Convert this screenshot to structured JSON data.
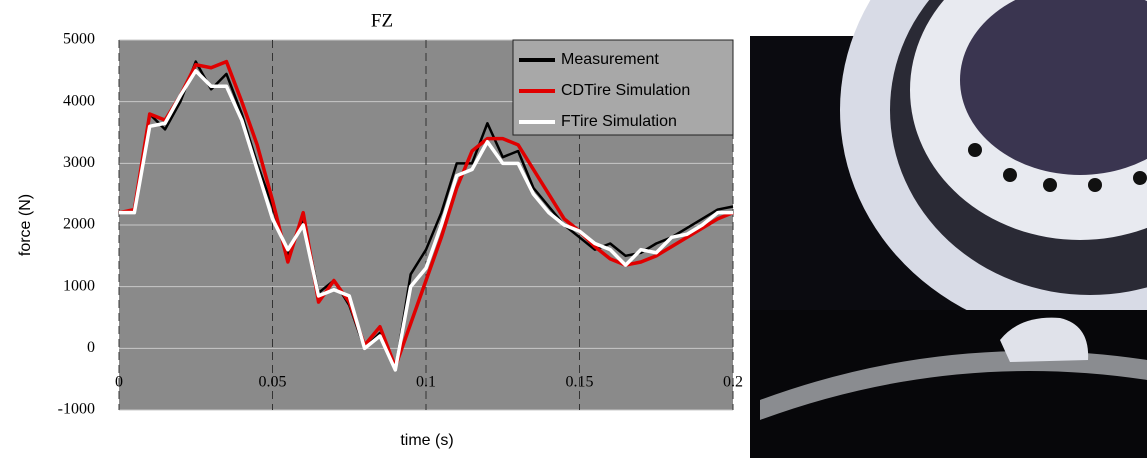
{
  "chart_data": {
    "type": "line",
    "title": "FZ",
    "x_label": "time (s)",
    "y_label": "force (N)",
    "x": [
      0,
      0.005,
      0.01,
      0.015,
      0.02,
      0.025,
      0.03,
      0.035,
      0.04,
      0.045,
      0.05,
      0.055,
      0.06,
      0.065,
      0.07,
      0.075,
      0.08,
      0.085,
      0.09,
      0.095,
      0.1,
      0.105,
      0.11,
      0.115,
      0.12,
      0.125,
      0.13,
      0.135,
      0.14,
      0.145,
      0.15,
      0.155,
      0.16,
      0.165,
      0.17,
      0.175,
      0.18,
      0.185,
      0.19,
      0.195,
      0.2
    ],
    "series": [
      {
        "name": "Measurement",
        "color": "#000000",
        "values": [
          2200,
          2250,
          3800,
          3550,
          4000,
          4650,
          4200,
          4450,
          3800,
          3000,
          2300,
          1500,
          2100,
          900,
          1100,
          700,
          0,
          250,
          -350,
          1200,
          1600,
          2200,
          3000,
          3000,
          3650,
          3100,
          3200,
          2600,
          2300,
          2000,
          1800,
          1600,
          1700,
          1500,
          1550,
          1700,
          1800,
          1950,
          2100,
          2250,
          2300
        ]
      },
      {
        "name": "CDTire Simulation",
        "color": "#e00000",
        "values": [
          2200,
          2250,
          3800,
          3700,
          4100,
          4600,
          4550,
          4650,
          4000,
          3300,
          2400,
          1400,
          2200,
          750,
          1100,
          750,
          50,
          350,
          -300,
          400,
          1100,
          1800,
          2600,
          3200,
          3400,
          3400,
          3300,
          2900,
          2500,
          2100,
          1900,
          1650,
          1450,
          1350,
          1400,
          1500,
          1650,
          1800,
          1950,
          2100,
          2200
        ]
      },
      {
        "name": "FTire Simulation",
        "color": "#ffffff",
        "values": [
          2200,
          2200,
          3600,
          3650,
          4100,
          4500,
          4250,
          4250,
          3700,
          2900,
          2100,
          1600,
          2000,
          850,
          950,
          850,
          0,
          200,
          -350,
          1000,
          1300,
          2000,
          2800,
          2900,
          3350,
          3000,
          3000,
          2500,
          2200,
          2000,
          1900,
          1700,
          1600,
          1350,
          1600,
          1550,
          1800,
          1850,
          2000,
          2200,
          2200
        ]
      }
    ],
    "xlim": [
      0,
      0.2
    ],
    "ylim": [
      -1000,
      5000
    ],
    "xticks": [
      0,
      0.05,
      0.1,
      0.15,
      0.2
    ],
    "yticks": [
      -1000,
      0,
      1000,
      2000,
      3000,
      4000,
      5000
    ],
    "grid": true,
    "legend": "upper right"
  }
}
